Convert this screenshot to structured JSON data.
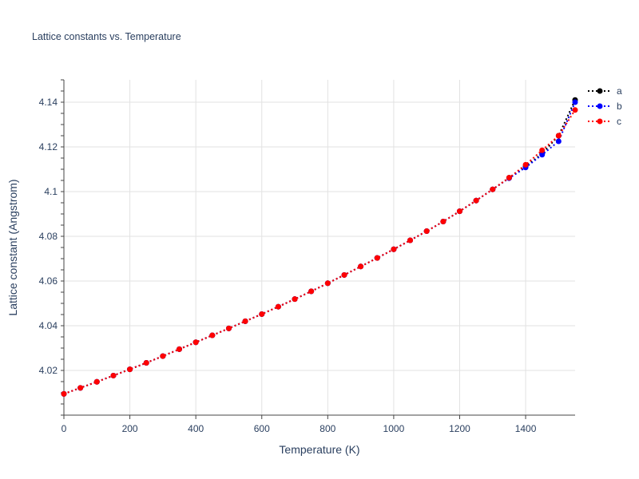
{
  "chart_data": {
    "type": "line",
    "title": "Lattice constants vs. Temperature",
    "xlabel": "Temperature (K)",
    "ylabel": "Lattice constant (Angstrom)",
    "xlim": [
      0,
      1550
    ],
    "ylim": [
      4.0,
      4.15
    ],
    "x_ticks": [
      0,
      200,
      400,
      600,
      800,
      1000,
      1200,
      1400
    ],
    "y_ticks": [
      4.02,
      4.04,
      4.06,
      4.08,
      4.1,
      4.12,
      4.14
    ],
    "y_tick_labels": [
      "4.02",
      "4.04",
      "4.06",
      "4.08",
      "4.1",
      "4.12",
      "4.14"
    ],
    "grid": true,
    "legend": "top-right",
    "x": [
      0,
      50,
      100,
      150,
      200,
      250,
      300,
      350,
      400,
      450,
      500,
      550,
      600,
      650,
      700,
      750,
      800,
      850,
      900,
      950,
      1000,
      1050,
      1100,
      1150,
      1200,
      1250,
      1300,
      1350,
      1400,
      1450,
      1500,
      1550
    ],
    "series": [
      {
        "name": "a",
        "color": "#000000",
        "values": [
          4.0095,
          4.0122,
          4.0149,
          4.0177,
          4.0205,
          4.0234,
          4.0264,
          4.0295,
          4.0326,
          4.0357,
          4.0388,
          4.042,
          4.0452,
          4.0485,
          4.0519,
          4.0554,
          4.059,
          4.0627,
          4.0665,
          4.0703,
          4.0742,
          4.0782,
          4.0823,
          4.0866,
          4.0912,
          4.096,
          4.101,
          4.1062,
          4.1112,
          4.117,
          4.125,
          4.141
        ]
      },
      {
        "name": "b",
        "color": "#0000ff",
        "values": [
          4.0095,
          4.0122,
          4.0149,
          4.0177,
          4.0205,
          4.0234,
          4.0264,
          4.0295,
          4.0326,
          4.0357,
          4.0388,
          4.042,
          4.0452,
          4.0485,
          4.0519,
          4.0554,
          4.059,
          4.0627,
          4.0665,
          4.0703,
          4.0742,
          4.0782,
          4.0823,
          4.0866,
          4.0912,
          4.096,
          4.101,
          4.106,
          4.1108,
          4.1165,
          4.1225,
          4.14
        ]
      },
      {
        "name": "c",
        "color": "#ff0000",
        "values": [
          4.0095,
          4.0122,
          4.0149,
          4.0177,
          4.0205,
          4.0234,
          4.0264,
          4.0295,
          4.0326,
          4.0357,
          4.0388,
          4.042,
          4.0452,
          4.0485,
          4.0519,
          4.0554,
          4.059,
          4.0627,
          4.0665,
          4.0703,
          4.0742,
          4.0782,
          4.0823,
          4.0866,
          4.0912,
          4.096,
          4.101,
          4.1062,
          4.112,
          4.1185,
          4.125,
          4.1365
        ]
      }
    ]
  }
}
